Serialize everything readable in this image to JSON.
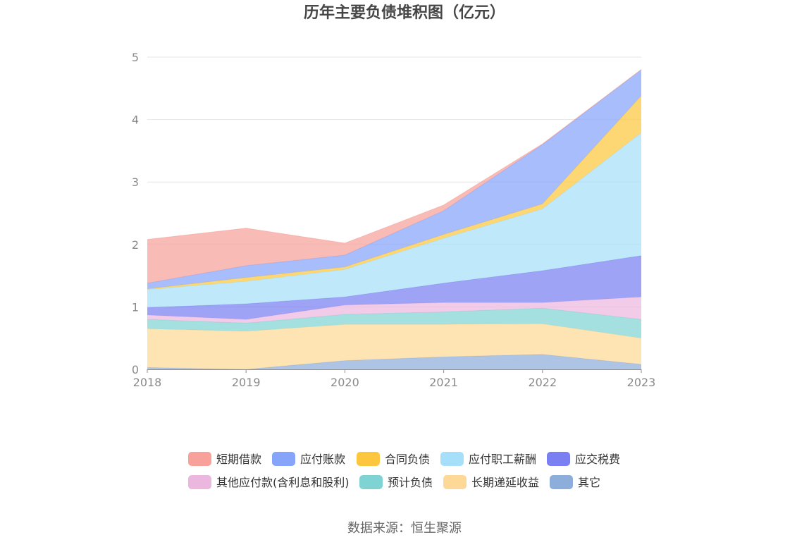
{
  "chart_data": {
    "type": "area",
    "stacked": true,
    "title": "历年主要负债堆积图（亿元）",
    "x": [
      "2018",
      "2019",
      "2020",
      "2021",
      "2022",
      "2023"
    ],
    "ylim": [
      0,
      5
    ],
    "yticks": [
      0,
      1,
      2,
      3,
      4,
      5
    ],
    "grid": true,
    "legend_position": "bottom",
    "series": [
      {
        "name": "短期借款",
        "color": "#f7a19a",
        "values": [
          0.7,
          0.6,
          0.19,
          0.09,
          0.01,
          0.0
        ]
      },
      {
        "name": "应付账款",
        "color": "#86a4f9",
        "values": [
          0.09,
          0.19,
          0.19,
          0.38,
          0.95,
          0.42
        ]
      },
      {
        "name": "合同负债",
        "color": "#fcc73e",
        "values": [
          0.01,
          0.06,
          0.04,
          0.06,
          0.08,
          0.59
        ]
      },
      {
        "name": "应付职工薪酬",
        "color": "#a6dffa",
        "values": [
          0.29,
          0.36,
          0.44,
          0.72,
          0.99,
          1.97
        ]
      },
      {
        "name": "应交税费",
        "color": "#7a7ff1",
        "values": [
          0.12,
          0.25,
          0.13,
          0.31,
          0.51,
          0.66
        ]
      },
      {
        "name": "其他应付款(含利息和股利)",
        "color": "#ebb7de",
        "values": [
          0.07,
          0.06,
          0.15,
          0.15,
          0.09,
          0.36
        ]
      },
      {
        "name": "预计负债",
        "color": "#7fd4d3",
        "values": [
          0.15,
          0.13,
          0.16,
          0.2,
          0.25,
          0.3
        ]
      },
      {
        "name": "长期递延收益",
        "color": "#fed896",
        "values": [
          0.62,
          0.61,
          0.58,
          0.52,
          0.49,
          0.42
        ]
      },
      {
        "name": "其它",
        "color": "#8daddb",
        "values": [
          0.03,
          0.0,
          0.14,
          0.2,
          0.24,
          0.08
        ]
      }
    ]
  },
  "source": "数据来源：恒生聚源"
}
